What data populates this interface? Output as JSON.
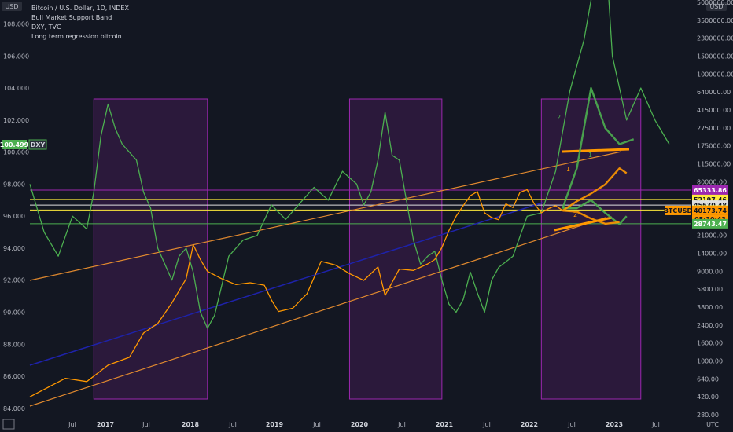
{
  "legend": {
    "symbol": "Bitcoin / U.S. Dollar, 1D, INDEX",
    "lines": [
      "Bull Market Support Band",
      "DXY, TVC",
      "Long term regression bitcoin"
    ]
  },
  "corner_labels": {
    "top_left": "USD",
    "top_right": "USD",
    "bottom_right": "UTC"
  },
  "colors": {
    "background": "#131722",
    "dxy": "#4caf50",
    "btc": "#ff9800",
    "regression": "#e0892f",
    "center_line": "#1e22aa",
    "zone_fill": "#9c27b0",
    "zone_border": "#9c27b0",
    "magenta_line": "#9c27b0",
    "yellow_line": "#ffeb3b",
    "white_line": "#e0e0e0",
    "green_line": "#4caf50"
  },
  "left_axis": {
    "ticks": [
      "108.000",
      "106.000",
      "104.000",
      "102.000",
      "100.000",
      "98.000",
      "96.000",
      "94.000",
      "92.000",
      "90.000",
      "88.000",
      "86.000",
      "84.000"
    ],
    "dxy_tag": {
      "value": "100.499",
      "label": "DXY"
    }
  },
  "right_axis": {
    "ticks": [
      "5000000.00",
      "3500000.00",
      "2300000.00",
      "1500000.00",
      "1000000.00",
      "640000.00",
      "415000.00",
      "275000.00",
      "175000.00",
      "115000.00",
      "80000.00",
      "52000.00",
      "34000.00",
      "21000.00",
      "14000.00",
      "9000.00",
      "5800.00",
      "3800.00",
      "2400.00",
      "1600.00",
      "1000.00",
      "640.00",
      "420.00",
      "280.00"
    ],
    "tags": [
      {
        "value": "65333.86",
        "bg": "#9c27b0",
        "fg": "#ffffff"
      },
      {
        "value": "52197.46",
        "bg": "#ffeb3b",
        "fg": "#131722"
      },
      {
        "value": "45630.48",
        "bg": "#e0e0e0",
        "fg": "#131722"
      },
      {
        "value": "40585.25",
        "bg": "#ffeb3b",
        "fg": "#131722"
      },
      {
        "value": "40173.74",
        "bg": "#ff9800",
        "fg": "#131722",
        "sub": "05:30:43",
        "label": "BTCUSD"
      },
      {
        "value": "28743.47",
        "bg": "#4caf50",
        "fg": "#ffffff"
      }
    ]
  },
  "time_axis": {
    "labels": [
      {
        "text": "Jul",
        "year": false
      },
      {
        "text": "2017",
        "year": true
      },
      {
        "text": "Jul",
        "year": false
      },
      {
        "text": "2018",
        "year": true
      },
      {
        "text": "Jul",
        "year": false
      },
      {
        "text": "2019",
        "year": true
      },
      {
        "text": "Jul",
        "year": false
      },
      {
        "text": "2020",
        "year": true
      },
      {
        "text": "Jul",
        "year": false
      },
      {
        "text": "2021",
        "year": true
      },
      {
        "text": "Jul",
        "year": false
      },
      {
        "text": "2022",
        "year": true
      },
      {
        "text": "Jul",
        "year": false
      },
      {
        "text": "2023",
        "year": true
      },
      {
        "text": "Jul",
        "year": false
      }
    ]
  },
  "annotations": [
    "2",
    "1",
    "1",
    "2"
  ],
  "chart_data": {
    "type": "line",
    "x_range": [
      "2016-01",
      "2023-10"
    ],
    "left_axis_range": [
      83.5,
      109.5
    ],
    "right_axis_scale": "log",
    "zones": [
      {
        "start": "2016-10",
        "end": "2018-02"
      },
      {
        "start": "2019-10",
        "end": "2020-11"
      },
      {
        "start": "2022-01",
        "end": "2023-03"
      }
    ],
    "horizontal_levels": [
      {
        "value": 65333.86,
        "color": "magenta"
      },
      {
        "value": 52197.46,
        "color": "yellow"
      },
      {
        "value": 45630.48,
        "color": "white"
      },
      {
        "value": 40585.25,
        "color": "yellow"
      },
      {
        "value": 28743.47,
        "color": "green"
      }
    ],
    "series": [
      {
        "axis": "left",
        "color": "green",
        "points": [
          [
            "2016-01",
            98.0
          ],
          [
            "2016-03",
            95.0
          ],
          [
            "2016-05",
            93.5
          ],
          [
            "2016-07",
            96.0
          ],
          [
            "2016-09",
            95.2
          ],
          [
            "2016-10",
            97.5
          ],
          [
            "2016-11",
            101.0
          ],
          [
            "2016-12",
            103.0
          ],
          [
            "2017-01",
            101.5
          ],
          [
            "2017-02",
            100.5
          ],
          [
            "2017-03",
            100.0
          ],
          [
            "2017-04",
            99.5
          ],
          [
            "2017-05",
            97.5
          ],
          [
            "2017-06",
            96.5
          ],
          [
            "2017-07",
            94.0
          ],
          [
            "2017-08",
            93.0
          ],
          [
            "2017-09",
            92.0
          ],
          [
            "2017-10",
            93.5
          ],
          [
            "2017-11",
            94.0
          ],
          [
            "2017-12",
            92.5
          ],
          [
            "2018-01",
            90.0
          ],
          [
            "2018-02",
            89.0
          ],
          [
            "2018-03",
            89.8
          ],
          [
            "2018-05",
            93.5
          ],
          [
            "2018-07",
            94.5
          ],
          [
            "2018-09",
            94.8
          ],
          [
            "2018-11",
            96.7
          ],
          [
            "2019-01",
            95.8
          ],
          [
            "2019-03",
            96.8
          ],
          [
            "2019-05",
            97.8
          ],
          [
            "2019-07",
            97.0
          ],
          [
            "2019-09",
            98.8
          ],
          [
            "2019-11",
            98.0
          ],
          [
            "2019-12",
            96.7
          ],
          [
            "2020-01",
            97.5
          ],
          [
            "2020-02",
            99.5
          ],
          [
            "2020-03",
            102.5
          ],
          [
            "2020-04",
            99.8
          ],
          [
            "2020-05",
            99.5
          ],
          [
            "2020-06",
            97.0
          ],
          [
            "2020-07",
            94.5
          ],
          [
            "2020-08",
            93.0
          ],
          [
            "2020-09",
            93.5
          ],
          [
            "2020-10",
            93.8
          ],
          [
            "2020-11",
            92.0
          ],
          [
            "2020-12",
            90.5
          ],
          [
            "2021-01",
            90.0
          ],
          [
            "2021-02",
            90.8
          ],
          [
            "2021-03",
            92.5
          ],
          [
            "2021-04",
            91.2
          ],
          [
            "2021-05",
            90.0
          ],
          [
            "2021-06",
            92.0
          ],
          [
            "2021-07",
            92.8
          ],
          [
            "2021-09",
            93.5
          ],
          [
            "2021-11",
            96.0
          ],
          [
            "2022-01",
            96.2
          ],
          [
            "2022-03",
            98.8
          ],
          [
            "2022-05",
            103.8
          ],
          [
            "2022-07",
            107.0
          ],
          [
            "2022-09",
            112.0
          ],
          [
            "2022-10",
            113.0
          ],
          [
            "2022-11",
            106.0
          ],
          [
            "2023-01",
            102.0
          ],
          [
            "2023-03",
            104.0
          ],
          [
            "2023-05",
            102.0
          ],
          [
            "2023-07",
            100.5
          ]
        ]
      },
      {
        "axis": "right",
        "color": "orange",
        "points": [
          [
            "2016-01",
            420
          ],
          [
            "2016-06",
            650
          ],
          [
            "2016-09",
            600
          ],
          [
            "2016-12",
            900
          ],
          [
            "2017-03",
            1100
          ],
          [
            "2017-05",
            2000
          ],
          [
            "2017-07",
            2500
          ],
          [
            "2017-09",
            4200
          ],
          [
            "2017-11",
            7500
          ],
          [
            "2017-12",
            17000
          ],
          [
            "2018-01",
            12000
          ],
          [
            "2018-02",
            9000
          ],
          [
            "2018-04",
            7500
          ],
          [
            "2018-06",
            6500
          ],
          [
            "2018-08",
            6800
          ],
          [
            "2018-10",
            6400
          ],
          [
            "2018-11",
            4500
          ],
          [
            "2018-12",
            3400
          ],
          [
            "2019-02",
            3700
          ],
          [
            "2019-04",
            5200
          ],
          [
            "2019-06",
            11500
          ],
          [
            "2019-08",
            10500
          ],
          [
            "2019-10",
            8500
          ],
          [
            "2019-12",
            7200
          ],
          [
            "2020-02",
            10000
          ],
          [
            "2020-03",
            5000
          ],
          [
            "2020-05",
            9500
          ],
          [
            "2020-07",
            9200
          ],
          [
            "2020-09",
            10800
          ],
          [
            "2020-10",
            12000
          ],
          [
            "2020-11",
            16000
          ],
          [
            "2020-12",
            24000
          ],
          [
            "2021-01",
            35000
          ],
          [
            "2021-02",
            45000
          ],
          [
            "2021-03",
            57000
          ],
          [
            "2021-04",
            63000
          ],
          [
            "2021-05",
            38000
          ],
          [
            "2021-06",
            34000
          ],
          [
            "2021-07",
            32000
          ],
          [
            "2021-08",
            47000
          ],
          [
            "2021-09",
            43000
          ],
          [
            "2021-10",
            62000
          ],
          [
            "2021-11",
            66000
          ],
          [
            "2021-12",
            47000
          ],
          [
            "2022-01",
            38000
          ],
          [
            "2022-02",
            42000
          ],
          [
            "2022-03",
            45000
          ],
          [
            "2022-04",
            40173.74
          ]
        ]
      }
    ],
    "projections": [
      {
        "axis": "left",
        "color": "green",
        "label": "2",
        "points": [
          [
            "2022-04",
            96.5
          ],
          [
            "2022-06",
            99.0
          ],
          [
            "2022-08",
            104.0
          ],
          [
            "2022-10",
            101.5
          ],
          [
            "2022-12",
            100.5
          ],
          [
            "2023-02",
            100.8
          ]
        ]
      },
      {
        "axis": "left",
        "color": "green",
        "label": "1",
        "points": [
          [
            "2022-04",
            96.5
          ],
          [
            "2022-06",
            96.5
          ],
          [
            "2022-08",
            97.0
          ],
          [
            "2022-10",
            96.2
          ],
          [
            "2022-12",
            95.5
          ],
          [
            "2023-01",
            96.0
          ]
        ]
      },
      {
        "axis": "right",
        "color": "orange",
        "label": "1",
        "points": [
          [
            "2022-04",
            40000
          ],
          [
            "2022-06",
            50000
          ],
          [
            "2022-08",
            60000
          ],
          [
            "2022-10",
            75000
          ],
          [
            "2022-12",
            105000
          ],
          [
            "2023-01",
            95000
          ]
        ]
      },
      {
        "axis": "right",
        "color": "orange",
        "label": "2",
        "points": [
          [
            "2022-04",
            40000
          ],
          [
            "2022-06",
            39000
          ],
          [
            "2022-08",
            33000
          ],
          [
            "2022-10",
            28743.47
          ],
          [
            "2022-12",
            30000
          ]
        ]
      }
    ]
  }
}
